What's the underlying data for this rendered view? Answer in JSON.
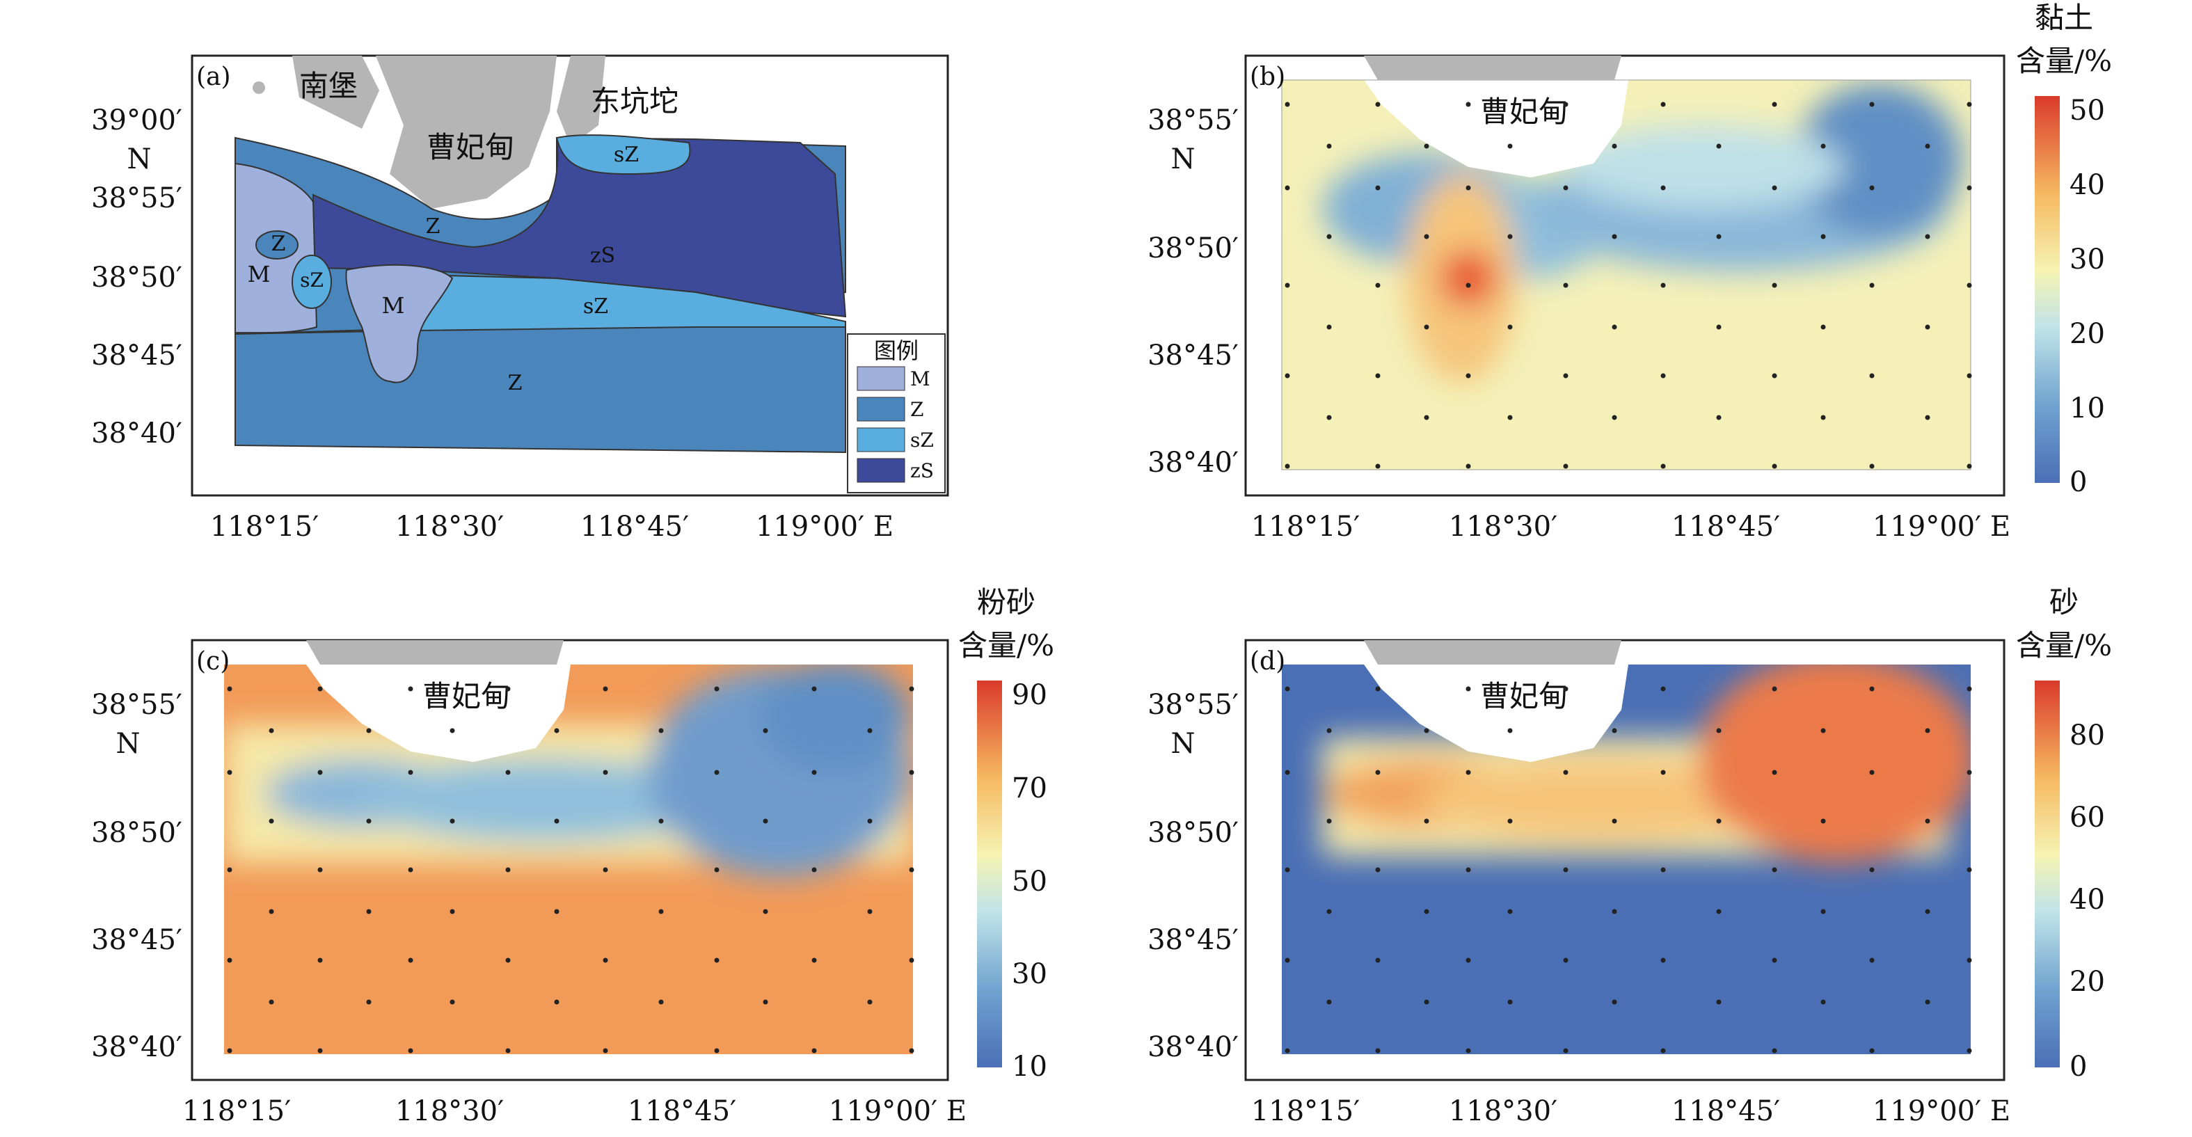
{
  "panels": {
    "a": {
      "tag": "(a)",
      "places": [
        "南堡",
        "曹妃甸",
        "东坑坨"
      ],
      "zones": [
        "M",
        "Z",
        "sZ",
        "zS"
      ],
      "zone_labels": [
        "Z",
        "M",
        "sZ",
        "M",
        "Z",
        "zS",
        "sZ",
        "Z",
        "sZ"
      ],
      "legend_title": "图例",
      "legend": [
        {
          "code": "M",
          "color": "#9fb0dc"
        },
        {
          "code": "Z",
          "color": "#4a85bc"
        },
        {
          "code": "sZ",
          "color": "#5aaedf"
        },
        {
          "code": "zS",
          "color": "#3d4a99"
        }
      ]
    },
    "b": {
      "tag": "(b)",
      "place": "曹妃甸",
      "bar_title_1": "黏土",
      "bar_title_2": "含量/%",
      "bar_ticks": [
        "50",
        "40",
        "30",
        "20",
        "10",
        "0"
      ]
    },
    "c": {
      "tag": "(c)",
      "place": "曹妃甸",
      "bar_title_1": "粉砂",
      "bar_title_2": "含量/%",
      "bar_ticks": [
        "90",
        "70",
        "50",
        "30",
        "10"
      ]
    },
    "d": {
      "tag": "(d)",
      "place": "曹妃甸",
      "bar_title_1": "砂",
      "bar_title_2": "含量/%",
      "bar_ticks": [
        "80",
        "60",
        "40",
        "20",
        "0"
      ]
    }
  },
  "axes": {
    "lat_top": [
      "39°00′",
      "N",
      "38°55′",
      "38°50′",
      "38°45′",
      "38°40′"
    ],
    "lat": [
      "38°55′",
      "N",
      "38°50′",
      "38°45′",
      "38°40′"
    ],
    "lon": [
      "118°15′",
      "118°30′",
      "118°45′",
      "119°00′ E"
    ]
  },
  "colors": {
    "land": "#b5b5b5",
    "low": "#4a6fb5",
    "mid": "#f6f3b2",
    "high": "#d93a2b",
    "silt_fill": "#f29a58"
  }
}
